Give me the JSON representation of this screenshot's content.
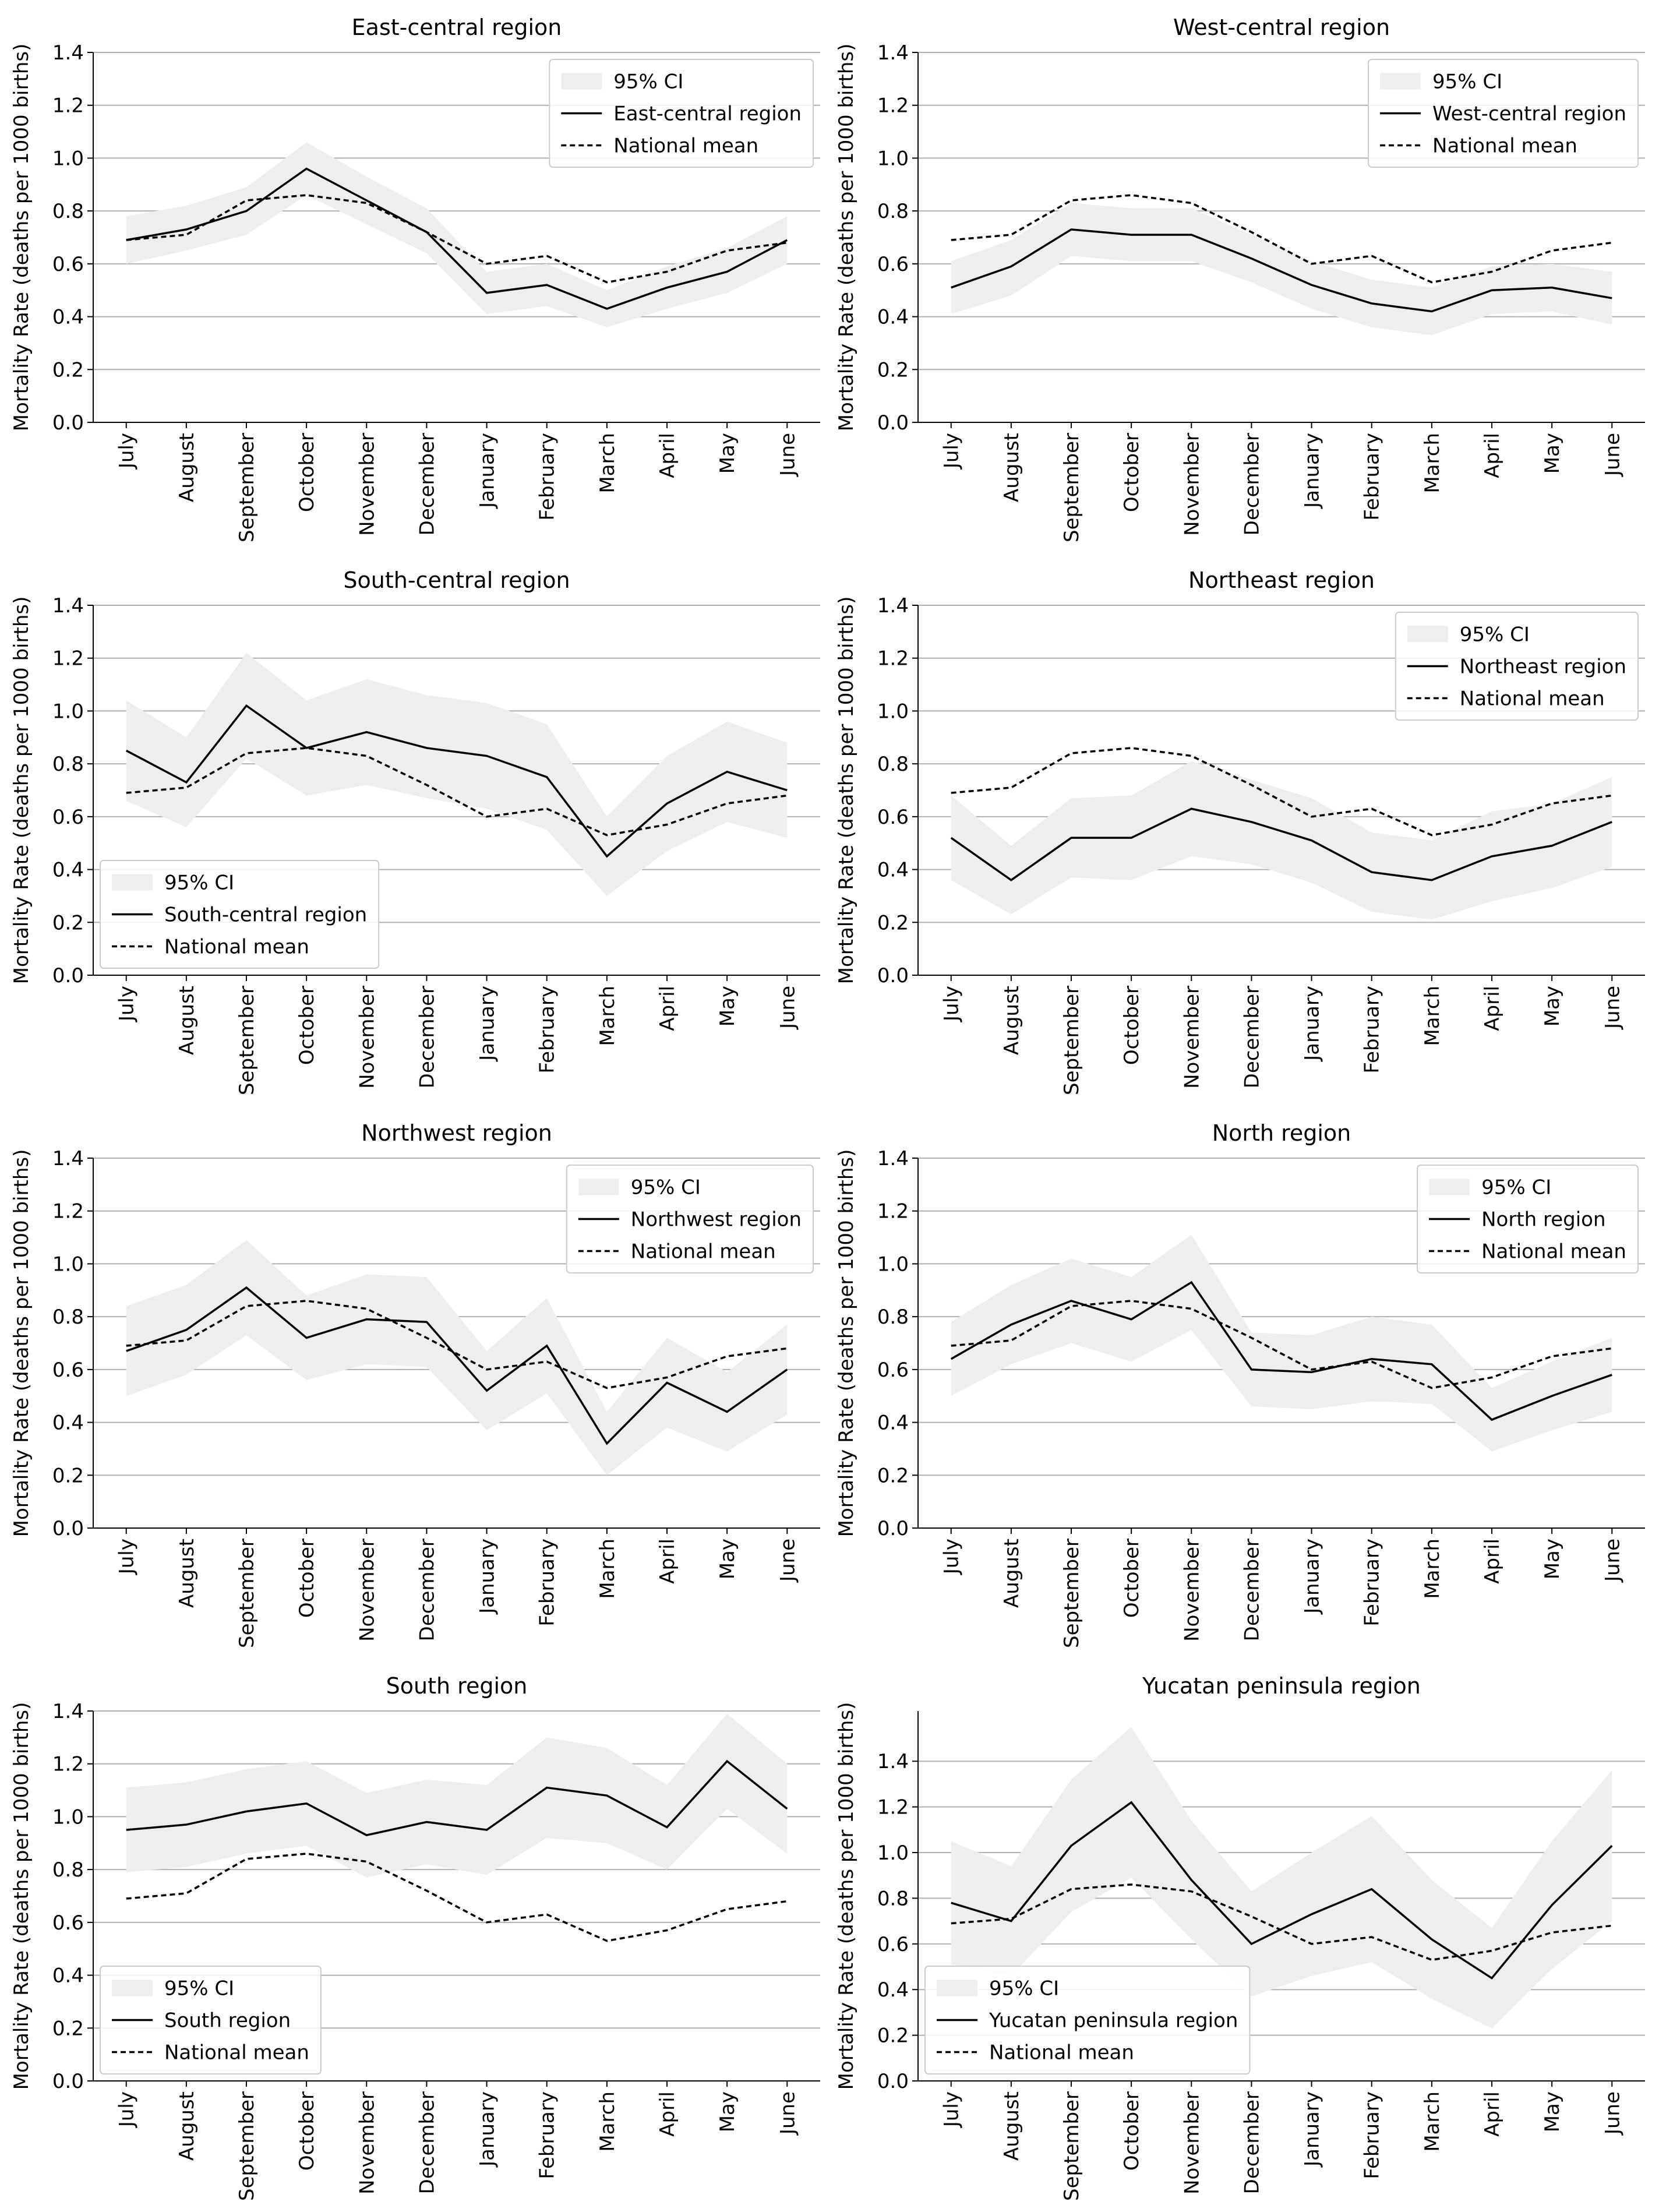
{
  "chart_data": [
    {
      "type": "line",
      "title": "East-central region",
      "ylabel": "Mortality Rate (deaths per 1000 births)",
      "categories": [
        "July",
        "August",
        "September",
        "October",
        "November",
        "December",
        "January",
        "February",
        "March",
        "April",
        "May",
        "June"
      ],
      "ylim": [
        0,
        1.4
      ],
      "yticks": [
        {
          "value": 0,
          "label": "0.0"
        },
        0.2,
        0.4,
        0.6,
        0.8,
        {
          "value": 1,
          "label": "1.0"
        },
        1.2,
        1.4
      ],
      "grid": true,
      "legend": "upper right",
      "series": [
        {
          "name": "95% CI",
          "color": "#eeeeee",
          "lower": [
            0.6,
            0.65,
            0.71,
            0.86,
            0.75,
            0.64,
            0.41,
            0.44,
            0.36,
            0.43,
            0.49,
            0.6
          ],
          "upper": [
            0.78,
            0.82,
            0.89,
            1.06,
            0.93,
            0.81,
            0.57,
            0.6,
            0.5,
            0.59,
            0.66,
            0.78
          ]
        },
        {
          "name": "East-central region",
          "color": "#000000",
          "linestyle": "solid",
          "values": [
            0.69,
            0.73,
            0.8,
            0.96,
            0.84,
            0.72,
            0.49,
            0.52,
            0.43,
            0.51,
            0.57,
            0.69
          ]
        },
        {
          "name": "National mean",
          "color": "#000000",
          "linestyle": "dashed",
          "values": [
            0.69,
            0.71,
            0.84,
            0.86,
            0.83,
            0.72,
            0.6,
            0.63,
            0.53,
            0.57,
            0.65,
            0.68
          ]
        }
      ]
    },
    {
      "type": "line",
      "title": "West-central region",
      "ylabel": "Mortality Rate (deaths per 1000 births)",
      "categories": [
        "July",
        "August",
        "September",
        "October",
        "November",
        "December",
        "January",
        "February",
        "March",
        "April",
        "May",
        "June"
      ],
      "ylim": [
        0,
        1.4
      ],
      "yticks": [
        {
          "value": 0,
          "label": "0.0"
        },
        0.2,
        0.4,
        0.6,
        0.8,
        {
          "value": 1,
          "label": "1.0"
        },
        1.2,
        1.4
      ],
      "grid": true,
      "legend": "upper right",
      "series": [
        {
          "name": "95% CI",
          "color": "#eeeeee",
          "lower": [
            0.41,
            0.48,
            0.63,
            0.61,
            0.61,
            0.53,
            0.43,
            0.36,
            0.33,
            0.41,
            0.42,
            0.37
          ],
          "upper": [
            0.61,
            0.69,
            0.83,
            0.81,
            0.81,
            0.71,
            0.61,
            0.54,
            0.51,
            0.59,
            0.6,
            0.57
          ]
        },
        {
          "name": "West-central region",
          "color": "#000000",
          "linestyle": "solid",
          "values": [
            0.51,
            0.59,
            0.73,
            0.71,
            0.71,
            0.62,
            0.52,
            0.45,
            0.42,
            0.5,
            0.51,
            0.47
          ]
        },
        {
          "name": "National mean",
          "color": "#000000",
          "linestyle": "dashed",
          "values": [
            0.69,
            0.71,
            0.84,
            0.86,
            0.83,
            0.72,
            0.6,
            0.63,
            0.53,
            0.57,
            0.65,
            0.68
          ]
        }
      ]
    },
    {
      "type": "line",
      "title": "South-central region",
      "ylabel": "Mortality Rate (deaths per 1000 births)",
      "categories": [
        "July",
        "August",
        "September",
        "October",
        "November",
        "December",
        "January",
        "February",
        "March",
        "April",
        "May",
        "June"
      ],
      "ylim": [
        0,
        1.4
      ],
      "yticks": [
        {
          "value": 0,
          "label": "0.0"
        },
        0.2,
        0.4,
        0.6,
        0.8,
        {
          "value": 1,
          "label": "1.0"
        },
        1.2,
        1.4
      ],
      "grid": true,
      "legend": "lower left",
      "series": [
        {
          "name": "95% CI",
          "color": "#eeeeee",
          "lower": [
            0.66,
            0.56,
            0.82,
            0.68,
            0.72,
            0.67,
            0.63,
            0.55,
            0.3,
            0.47,
            0.58,
            0.52
          ],
          "upper": [
            1.04,
            0.9,
            1.22,
            1.04,
            1.12,
            1.06,
            1.03,
            0.95,
            0.6,
            0.83,
            0.96,
            0.88
          ]
        },
        {
          "name": "South-central region",
          "color": "#000000",
          "linestyle": "solid",
          "values": [
            0.85,
            0.73,
            1.02,
            0.86,
            0.92,
            0.86,
            0.83,
            0.75,
            0.45,
            0.65,
            0.77,
            0.7
          ]
        },
        {
          "name": "National mean",
          "color": "#000000",
          "linestyle": "dashed",
          "values": [
            0.69,
            0.71,
            0.84,
            0.86,
            0.83,
            0.72,
            0.6,
            0.63,
            0.53,
            0.57,
            0.65,
            0.68
          ]
        }
      ]
    },
    {
      "type": "line",
      "title": "Northeast region",
      "ylabel": "Mortality Rate (deaths per 1000 births)",
      "categories": [
        "July",
        "August",
        "September",
        "October",
        "November",
        "December",
        "January",
        "February",
        "March",
        "April",
        "May",
        "June"
      ],
      "ylim": [
        0,
        1.4
      ],
      "yticks": [
        {
          "value": 0,
          "label": "0.0"
        },
        0.2,
        0.4,
        0.6,
        0.8,
        {
          "value": 1,
          "label": "1.0"
        },
        1.2,
        1.4
      ],
      "grid": true,
      "legend": "upper right",
      "series": [
        {
          "name": "95% CI",
          "color": "#eeeeee",
          "lower": [
            0.36,
            0.23,
            0.37,
            0.36,
            0.45,
            0.42,
            0.35,
            0.24,
            0.21,
            0.28,
            0.33,
            0.41
          ],
          "upper": [
            0.68,
            0.49,
            0.67,
            0.68,
            0.81,
            0.74,
            0.67,
            0.54,
            0.51,
            0.62,
            0.65,
            0.75
          ]
        },
        {
          "name": "Northeast region",
          "color": "#000000",
          "linestyle": "solid",
          "values": [
            0.52,
            0.36,
            0.52,
            0.52,
            0.63,
            0.58,
            0.51,
            0.39,
            0.36,
            0.45,
            0.49,
            0.58
          ]
        },
        {
          "name": "National mean",
          "color": "#000000",
          "linestyle": "dashed",
          "values": [
            0.69,
            0.71,
            0.84,
            0.86,
            0.83,
            0.72,
            0.6,
            0.63,
            0.53,
            0.57,
            0.65,
            0.68
          ]
        }
      ]
    },
    {
      "type": "line",
      "title": "Northwest region",
      "ylabel": "Mortality Rate (deaths per 1000 births)",
      "categories": [
        "July",
        "August",
        "September",
        "October",
        "November",
        "December",
        "January",
        "February",
        "March",
        "April",
        "May",
        "June"
      ],
      "ylim": [
        0,
        1.4
      ],
      "yticks": [
        {
          "value": 0,
          "label": "0.0"
        },
        0.2,
        0.4,
        0.6,
        0.8,
        {
          "value": 1,
          "label": "1.0"
        },
        1.2,
        1.4
      ],
      "grid": true,
      "legend": "upper right",
      "series": [
        {
          "name": "95% CI",
          "color": "#eeeeee",
          "lower": [
            0.5,
            0.58,
            0.73,
            0.56,
            0.62,
            0.61,
            0.37,
            0.51,
            0.2,
            0.38,
            0.29,
            0.43
          ],
          "upper": [
            0.84,
            0.92,
            1.09,
            0.88,
            0.96,
            0.95,
            0.67,
            0.87,
            0.44,
            0.72,
            0.59,
            0.77
          ]
        },
        {
          "name": "Northwest region",
          "color": "#000000",
          "linestyle": "solid",
          "values": [
            0.67,
            0.75,
            0.91,
            0.72,
            0.79,
            0.78,
            0.52,
            0.69,
            0.32,
            0.55,
            0.44,
            0.6
          ]
        },
        {
          "name": "National mean",
          "color": "#000000",
          "linestyle": "dashed",
          "values": [
            0.69,
            0.71,
            0.84,
            0.86,
            0.83,
            0.72,
            0.6,
            0.63,
            0.53,
            0.57,
            0.65,
            0.68
          ]
        }
      ]
    },
    {
      "type": "line",
      "title": "North region",
      "ylabel": "Mortality Rate (deaths per 1000 births)",
      "categories": [
        "July",
        "August",
        "September",
        "October",
        "November",
        "December",
        "January",
        "February",
        "March",
        "April",
        "May",
        "June"
      ],
      "ylim": [
        0,
        1.4
      ],
      "yticks": [
        {
          "value": 0,
          "label": "0.0"
        },
        0.2,
        0.4,
        0.6,
        0.8,
        {
          "value": 1,
          "label": "1.0"
        },
        1.2,
        1.4
      ],
      "grid": true,
      "legend": "upper right",
      "series": [
        {
          "name": "95% CI",
          "color": "#eeeeee",
          "lower": [
            0.5,
            0.62,
            0.7,
            0.63,
            0.75,
            0.46,
            0.45,
            0.48,
            0.47,
            0.29,
            0.37,
            0.44
          ],
          "upper": [
            0.78,
            0.92,
            1.02,
            0.95,
            1.11,
            0.74,
            0.73,
            0.8,
            0.77,
            0.53,
            0.63,
            0.72
          ]
        },
        {
          "name": "North region",
          "color": "#000000",
          "linestyle": "solid",
          "values": [
            0.64,
            0.77,
            0.86,
            0.79,
            0.93,
            0.6,
            0.59,
            0.64,
            0.62,
            0.41,
            0.5,
            0.58
          ]
        },
        {
          "name": "National mean",
          "color": "#000000",
          "linestyle": "dashed",
          "values": [
            0.69,
            0.71,
            0.84,
            0.86,
            0.83,
            0.72,
            0.6,
            0.63,
            0.53,
            0.57,
            0.65,
            0.68
          ]
        }
      ]
    },
    {
      "type": "line",
      "title": "South region",
      "ylabel": "Mortality Rate (deaths per 1000 births)",
      "categories": [
        "July",
        "August",
        "September",
        "October",
        "November",
        "December",
        "January",
        "February",
        "March",
        "April",
        "May",
        "June"
      ],
      "ylim": [
        0,
        1.4
      ],
      "yticks": [
        {
          "value": 0,
          "label": "0.0"
        },
        0.2,
        0.4,
        0.6,
        0.8,
        {
          "value": 1,
          "label": "1.0"
        },
        1.2,
        1.4
      ],
      "grid": true,
      "legend": "lower left",
      "series": [
        {
          "name": "95% CI",
          "color": "#eeeeee",
          "lower": [
            0.79,
            0.81,
            0.86,
            0.89,
            0.77,
            0.82,
            0.78,
            0.92,
            0.9,
            0.8,
            1.03,
            0.86
          ],
          "upper": [
            1.11,
            1.13,
            1.18,
            1.21,
            1.09,
            1.14,
            1.12,
            1.3,
            1.26,
            1.12,
            1.39,
            1.2
          ]
        },
        {
          "name": "South region",
          "color": "#000000",
          "linestyle": "solid",
          "values": [
            0.95,
            0.97,
            1.02,
            1.05,
            0.93,
            0.98,
            0.95,
            1.11,
            1.08,
            0.96,
            1.21,
            1.03
          ]
        },
        {
          "name": "National mean",
          "color": "#000000",
          "linestyle": "dashed",
          "values": [
            0.69,
            0.71,
            0.84,
            0.86,
            0.83,
            0.72,
            0.6,
            0.63,
            0.53,
            0.57,
            0.65,
            0.68
          ]
        }
      ]
    },
    {
      "type": "line",
      "title": "Yucatan peninsula region",
      "ylabel": "Mortality Rate (deaths per 1000 births)",
      "categories": [
        "July",
        "August",
        "September",
        "October",
        "November",
        "December",
        "January",
        "February",
        "March",
        "April",
        "May",
        "June"
      ],
      "ylim": [
        0,
        1.62
      ],
      "yticks": [
        {
          "value": 0,
          "label": "0.0"
        },
        0.2,
        0.4,
        0.6,
        0.8,
        {
          "value": 1,
          "label": "1.0"
        },
        1.2,
        1.4
      ],
      "grid": true,
      "legend": "lower left",
      "series": [
        {
          "name": "95% CI",
          "color": "#eeeeee",
          "lower": [
            0.51,
            0.46,
            0.74,
            0.89,
            0.62,
            0.37,
            0.46,
            0.52,
            0.36,
            0.23,
            0.49,
            0.7
          ],
          "upper": [
            1.05,
            0.94,
            1.32,
            1.55,
            1.14,
            0.83,
            1.0,
            1.16,
            0.88,
            0.67,
            1.05,
            1.36
          ]
        },
        {
          "name": "Yucatan peninsula region",
          "color": "#000000",
          "linestyle": "solid",
          "values": [
            0.78,
            0.7,
            1.03,
            1.22,
            0.88,
            0.6,
            0.73,
            0.84,
            0.62,
            0.45,
            0.77,
            1.03
          ]
        },
        {
          "name": "National mean",
          "color": "#000000",
          "linestyle": "dashed",
          "values": [
            0.69,
            0.71,
            0.84,
            0.86,
            0.83,
            0.72,
            0.6,
            0.63,
            0.53,
            0.57,
            0.65,
            0.68
          ]
        }
      ]
    }
  ]
}
